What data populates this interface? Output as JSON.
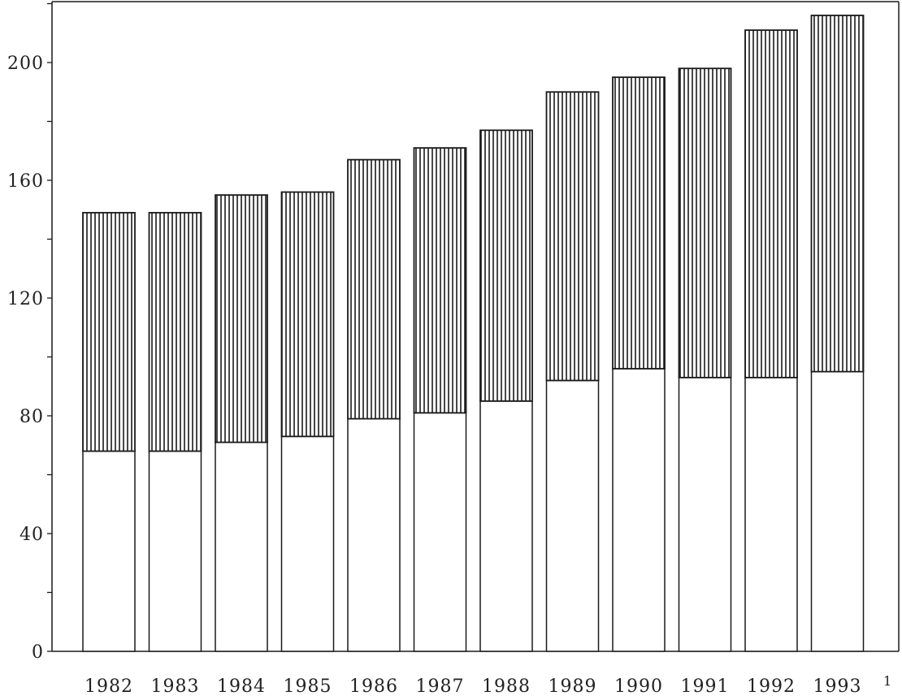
{
  "chart_data": {
    "type": "bar",
    "stacked": true,
    "categories": [
      "1982",
      "1983",
      "1984",
      "1985",
      "1986",
      "1987",
      "1988",
      "1989",
      "1990",
      "1991",
      "1992",
      "1993"
    ],
    "series": [
      {
        "pattern": "white",
        "values": [
          68,
          68,
          71,
          73,
          79,
          81,
          85,
          92,
          96,
          93,
          93,
          95
        ]
      },
      {
        "pattern": "vertical-hatch",
        "values": [
          81,
          81,
          84,
          83,
          88,
          90,
          92,
          98,
          99,
          105,
          118,
          121
        ]
      }
    ],
    "totals": [
      149,
      149,
      155,
      156,
      167,
      171,
      177,
      190,
      195,
      198,
      211,
      216
    ],
    "ylim": [
      0,
      220
    ],
    "yticks": [
      0,
      40,
      80,
      120,
      160,
      200
    ],
    "title": "",
    "xlabel": "",
    "ylabel": "",
    "grid": false,
    "legend": "none",
    "trailing_label": "1",
    "colors": {
      "stroke": "#1a1a1a",
      "fill": "#ffffff",
      "hatch": "#1a1a1a"
    }
  }
}
